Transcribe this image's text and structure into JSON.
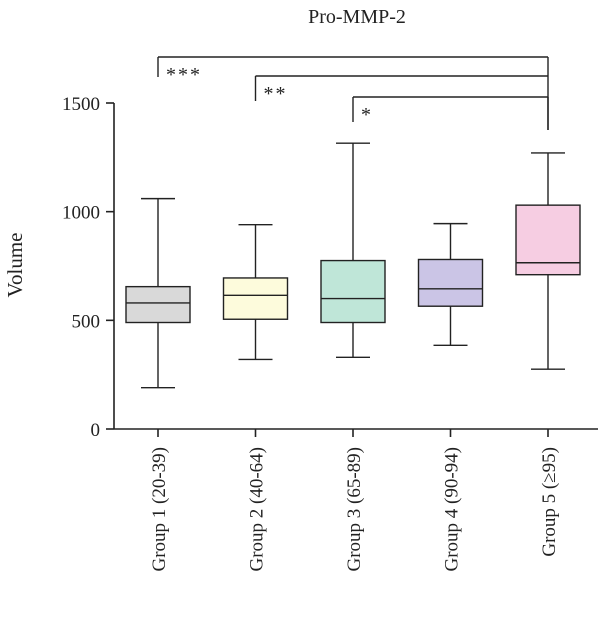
{
  "chart_data": {
    "type": "box",
    "title": "Pro-MMP-2",
    "ylabel": "Volume",
    "xlabel": "",
    "ylim": [
      0,
      1500
    ],
    "yticks": [
      0,
      500,
      1000,
      1500
    ],
    "categories": [
      "Group 1 (20-39)",
      "Group 2 (40-64)",
      "Group 3 (65-89)",
      "Group 4 (90-94)",
      "Group 5 (≥95)"
    ],
    "boxes": [
      {
        "min": 190,
        "q1": 490,
        "median": 580,
        "q3": 655,
        "max": 1060,
        "color": "#d9d9d9"
      },
      {
        "min": 320,
        "q1": 505,
        "median": 615,
        "q3": 695,
        "max": 940,
        "color": "#fdfbdc"
      },
      {
        "min": 330,
        "q1": 490,
        "median": 600,
        "q3": 775,
        "max": 1315,
        "color": "#bfe6d8"
      },
      {
        "min": 385,
        "q1": 565,
        "median": 645,
        "q3": 780,
        "max": 945,
        "color": "#cbc5e6"
      },
      {
        "min": 275,
        "q1": 710,
        "median": 765,
        "q3": 1030,
        "max": 1270,
        "color": "#f6cde2"
      }
    ],
    "significance": [
      {
        "from": 0,
        "to": 4,
        "label": "***"
      },
      {
        "from": 1,
        "to": 4,
        "label": "**"
      },
      {
        "from": 2,
        "to": 4,
        "label": "*"
      }
    ],
    "grid": false,
    "legend": "none"
  }
}
